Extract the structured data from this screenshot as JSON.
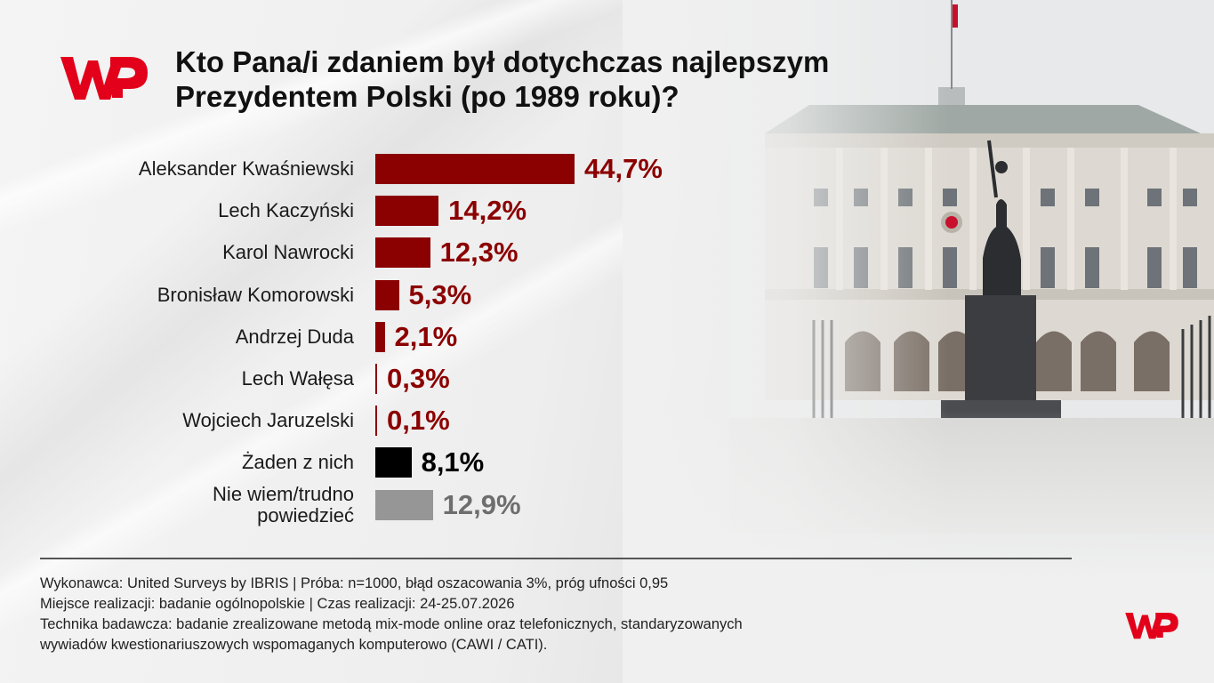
{
  "title": {
    "line1": "Kto Pana/i zdaniem był dotychczas najlepszym",
    "line2": "Prezydentem Polski (po 1989 roku)?"
  },
  "logo": {
    "icon": "wp-logo-icon",
    "color": "#e2001a"
  },
  "colors": {
    "primary_bar": "#8b0000",
    "none_bar": "#000000",
    "dont_know_bar": "#969696",
    "primary_value_text": "#8b0000",
    "none_value_text": "#000000",
    "dont_know_value_text": "#6e6e6e"
  },
  "chart_data": {
    "type": "bar",
    "orientation": "horizontal",
    "title": "Kto Pana/i zdaniem był dotychczas najlepszym Prezydentem Polski (po 1989 roku)?",
    "categories": [
      "Aleksander Kwaśniewski",
      "Lech Kaczyński",
      "Karol Nawrocki",
      "Bronisław Komorowski",
      "Andrzej Duda",
      "Lech Wałęsa",
      "Wojciech Jaruzelski",
      "Żaden z nich",
      "Nie wiem/trudno powiedzieć"
    ],
    "category_lines": [
      [
        "Aleksander Kwaśniewski"
      ],
      [
        "Lech Kaczyński"
      ],
      [
        "Karol Nawrocki"
      ],
      [
        "Bronisław Komorowski"
      ],
      [
        "Andrzej Duda"
      ],
      [
        "Lech Wałęsa"
      ],
      [
        "Wojciech Jaruzelski"
      ],
      [
        "Żaden z nich"
      ],
      [
        "Nie wiem/trudno",
        "powiedzieć"
      ]
    ],
    "values": [
      44.7,
      14.2,
      12.3,
      5.3,
      2.1,
      0.3,
      0.1,
      8.1,
      12.9
    ],
    "value_labels": [
      "44,7%",
      "14,2%",
      "12,3%",
      "5,3%",
      "2,1%",
      "0,3%",
      "0,1%",
      "8,1%",
      "12,9%"
    ],
    "bar_color_keys": [
      "primary_bar",
      "primary_bar",
      "primary_bar",
      "primary_bar",
      "primary_bar",
      "primary_bar",
      "primary_bar",
      "none_bar",
      "dont_know_bar"
    ],
    "label_color_keys": [
      "primary_value_text",
      "primary_value_text",
      "primary_value_text",
      "primary_value_text",
      "primary_value_text",
      "primary_value_text",
      "primary_value_text",
      "none_value_text",
      "dont_know_value_text"
    ],
    "xlim": [
      0,
      44.7
    ],
    "grid": false,
    "legend": "none"
  },
  "footer": {
    "line1": "Wykonawca: United Surveys by IBRIS | Próba: n=1000, błąd oszacowania 3%, próg ufności 0,95",
    "line2": "Miejsce realizacji: badanie ogólnopolskie | Czas realizacji: 24-25.07.2026",
    "line3": "Technika badawcza: badanie zrealizowane metodą mix-mode online oraz telefonicznych, standaryzowanych",
    "line4": "wywiadów kwestionariuszowych wspomaganych komputerowo (CAWI / CATI)."
  }
}
